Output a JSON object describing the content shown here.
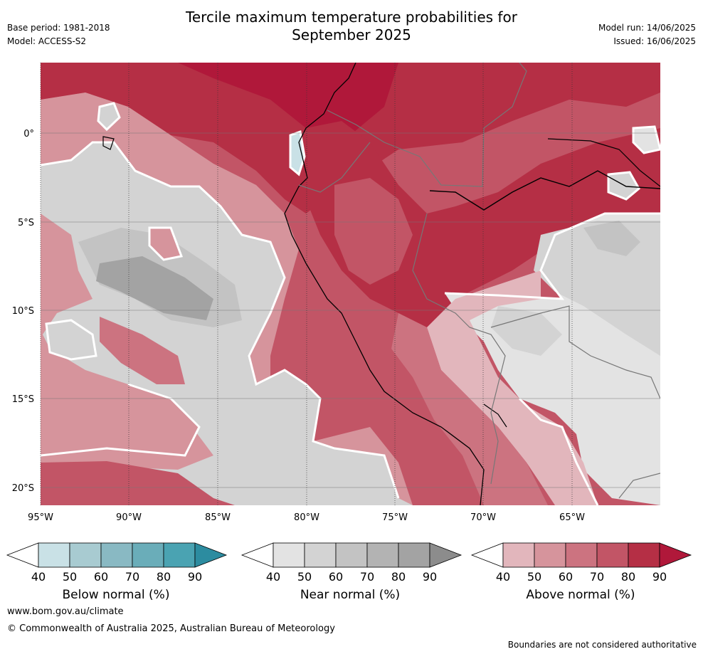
{
  "title_line1": "Tercile maximum temperature probabilities for",
  "title_line2": "September 2025",
  "base_period": "Base period: 1981-2018",
  "model": "Model: ACCESS-S2",
  "model_run": "Model run: 14/06/2025",
  "issued": "Issued: 16/06/2025",
  "map": {
    "lat_labels": [
      "0°",
      "5°S",
      "10°S",
      "15°S",
      "20°S"
    ],
    "lon_labels": [
      "95°W",
      "90°W",
      "85°W",
      "80°W",
      "75°W",
      "70°W",
      "65°W"
    ]
  },
  "colorbars": [
    {
      "label": "Below normal (%)",
      "ticks": [
        "40",
        "50",
        "60",
        "70",
        "80",
        "90"
      ],
      "colors": [
        "#ffffff",
        "#c9e1e6",
        "#a8cbd1",
        "#89b9c3",
        "#6aadb9",
        "#4aa3b2",
        "#2c8ca0"
      ]
    },
    {
      "label": "Near normal (%)",
      "ticks": [
        "40",
        "50",
        "60",
        "70",
        "80",
        "90"
      ],
      "colors": [
        "#ffffff",
        "#e3e3e3",
        "#d3d3d3",
        "#c3c3c3",
        "#b3b3b3",
        "#a3a3a3",
        "#8c8c8c"
      ]
    },
    {
      "label": "Above normal (%)",
      "ticks": [
        "40",
        "50",
        "60",
        "70",
        "80",
        "90"
      ],
      "colors": [
        "#ffffff",
        "#e2b6bc",
        "#d6949c",
        "#cc7380",
        "#c25566",
        "#b52f45",
        "#b0183a"
      ]
    }
  ],
  "footer": {
    "url": "www.bom.gov.au/climate",
    "copyright": "© Commonwealth of Australia 2025, Australian Bureau of Meteorology",
    "disclaimer": "Boundaries are not considered authoritative"
  }
}
